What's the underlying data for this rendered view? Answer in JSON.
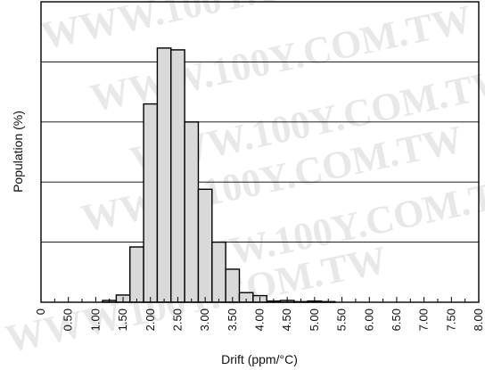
{
  "chart_data": {
    "type": "bar",
    "xlabel": "Drift (ppm/°C)",
    "ylabel": "Population (%)",
    "x_tick_labels": [
      "0",
      "0.50",
      "1.00",
      "1.50",
      "2.00",
      "2.50",
      "3.00",
      "3.50",
      "4.00",
      "4.50",
      "5.00",
      "5.50",
      "6.00",
      "6.50",
      "7.00",
      "7.50",
      "8.00"
    ],
    "x_ticks": [
      0,
      0.5,
      1.0,
      1.5,
      2.0,
      2.5,
      3.0,
      3.5,
      4.0,
      4.5,
      5.0,
      5.5,
      6.0,
      6.5,
      7.0,
      7.5,
      8.0
    ],
    "xlim": [
      0,
      8.0
    ],
    "ylim": [
      0,
      5
    ],
    "y_gridlines": [
      1,
      2,
      3,
      4
    ],
    "grid": "horizontal",
    "bin_width": 0.25,
    "bins": [
      {
        "x": 1.25,
        "value": 0.03
      },
      {
        "x": 1.5,
        "value": 0.12
      },
      {
        "x": 1.75,
        "value": 0.92
      },
      {
        "x": 2.0,
        "value": 3.3
      },
      {
        "x": 2.25,
        "value": 4.23
      },
      {
        "x": 2.5,
        "value": 4.2
      },
      {
        "x": 2.75,
        "value": 3.0
      },
      {
        "x": 3.0,
        "value": 1.88
      },
      {
        "x": 3.25,
        "value": 1.0
      },
      {
        "x": 3.5,
        "value": 0.55
      },
      {
        "x": 3.75,
        "value": 0.16
      },
      {
        "x": 4.0,
        "value": 0.11
      },
      {
        "x": 4.25,
        "value": 0.02
      },
      {
        "x": 4.5,
        "value": 0.03
      },
      {
        "x": 4.75,
        "value": 0.01
      },
      {
        "x": 5.0,
        "value": 0.02
      },
      {
        "x": 5.25,
        "value": 0.01
      }
    ],
    "watermark": "WWW.100Y.COM.TW"
  }
}
